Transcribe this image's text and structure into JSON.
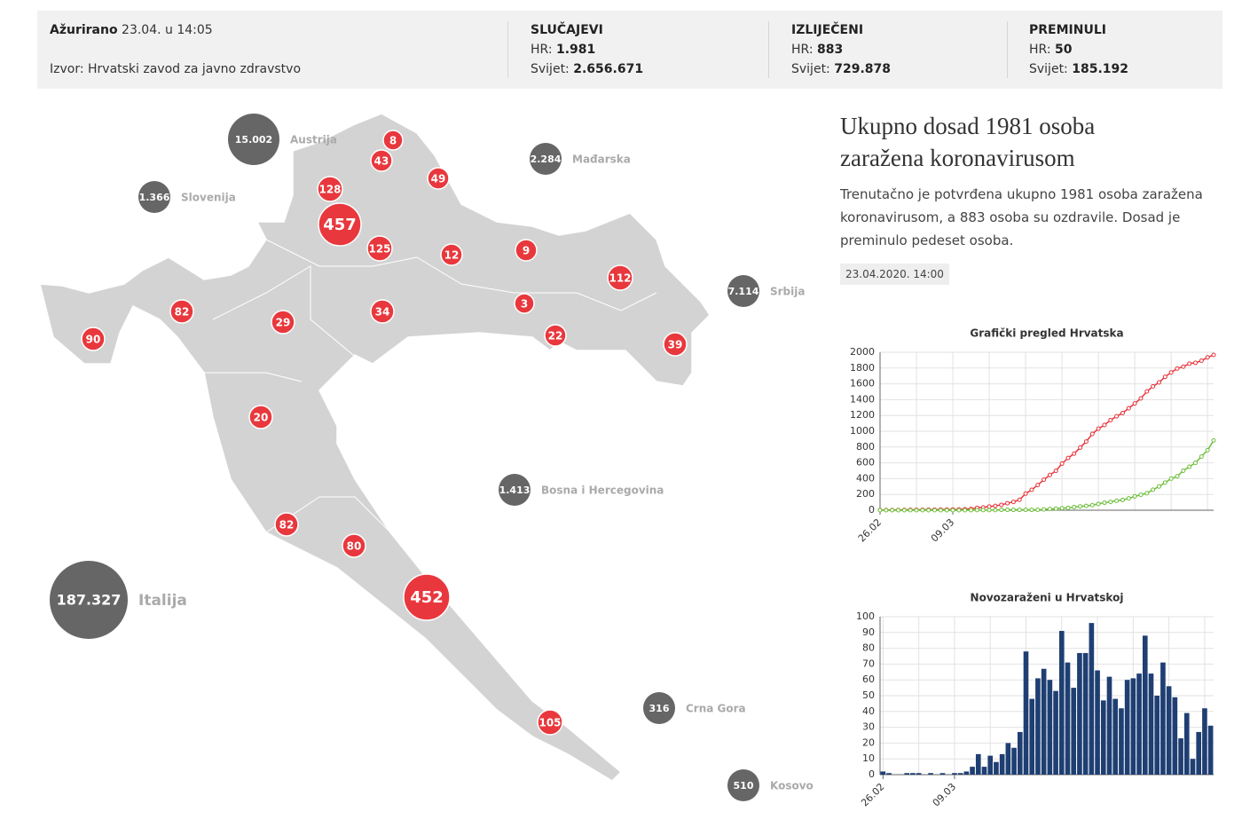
{
  "header": {
    "updated_label": "Ažurirano",
    "updated": "23.04. u 14:05",
    "source": "Izvor: Hrvatski zavod za javno zdravstvo",
    "stats": [
      {
        "title": "SLUČAJEVI",
        "hr_label": "HR:",
        "hr": "1.981",
        "world_label": "Svijet:",
        "world": "2.656.671"
      },
      {
        "title": "IZLIJEČENI",
        "hr_label": "HR:",
        "hr": "883",
        "world_label": "Svijet:",
        "world": "729.878"
      },
      {
        "title": "PREMINULI",
        "hr_label": "HR:",
        "hr": "50",
        "world_label": "Svijet:",
        "world": "185.192"
      }
    ]
  },
  "map": {
    "county_color": "#e8383d",
    "country_color": "#666666",
    "counties": [
      8,
      43,
      49,
      128,
      457,
      125,
      12,
      9,
      112,
      82,
      29,
      34,
      3,
      90,
      22,
      39,
      20,
      82,
      80,
      452,
      105
    ],
    "countries": [
      {
        "label": "15.002",
        "name": "Austrija"
      },
      {
        "label": "2.284",
        "name": "Mađarska"
      },
      {
        "label": "1.366",
        "name": "Slovenija"
      },
      {
        "label": "7.114",
        "name": "Srbija"
      },
      {
        "label": "1.413",
        "name": "Bosna i Hercegovina"
      },
      {
        "label": "187.327",
        "name": "Italija"
      },
      {
        "label": "316",
        "name": "Crna Gora"
      },
      {
        "label": "510",
        "name": "Kosovo"
      }
    ]
  },
  "article": {
    "title": "Ukupno dosad 1981 osoba zaražena koronavirusom",
    "body": "Trenutačno je potvrđena ukupno 1981 osoba zaražena koronavirusom, a 883 osoba su ozdravile. Dosad je preminulo pedeset osoba.",
    "date": "23.04.2020. 14:00"
  },
  "chart_data": [
    {
      "type": "line",
      "title": "Grafički pregled Hrvatska",
      "categories": [
        "26.02",
        null,
        null,
        null,
        null,
        null,
        null,
        null,
        null,
        null,
        null,
        null,
        "09.03",
        null,
        null,
        null,
        null,
        null,
        null,
        null,
        null,
        null,
        null,
        null,
        null,
        null,
        null,
        null,
        null,
        null,
        null,
        null,
        null,
        null,
        null,
        null,
        null,
        null,
        null,
        null,
        null,
        null,
        null,
        null,
        null,
        null,
        null,
        null,
        null,
        null,
        null,
        null,
        null,
        null,
        null,
        null
      ],
      "series": [
        {
          "color": "#e8333a",
          "values": [
            2,
            3,
            3,
            3,
            4,
            5,
            6,
            6,
            7,
            7,
            8,
            8,
            9,
            10,
            12,
            17,
            30,
            35,
            47,
            55,
            68,
            88,
            105,
            132,
            210,
            258,
            319,
            386,
            446,
            499,
            590,
            661,
            716,
            793,
            870,
            966,
            1032,
            1079,
            1141,
            1189,
            1231,
            1291,
            1352,
            1416,
            1504,
            1568,
            1618,
            1689,
            1745,
            1794,
            1817,
            1856,
            1866,
            1893,
            1935,
            1966
          ]
        },
        {
          "color": "#6dbf3a",
          "values": [
            0,
            0,
            0,
            0,
            0,
            0,
            0,
            0,
            0,
            0,
            0,
            0,
            0,
            0,
            0,
            0,
            1,
            1,
            1,
            2,
            5,
            5,
            5,
            5,
            5,
            5,
            6,
            10,
            15,
            20,
            25,
            30,
            40,
            48,
            55,
            65,
            80,
            95,
            105,
            120,
            130,
            150,
            175,
            195,
            215,
            260,
            300,
            350,
            400,
            430,
            500,
            550,
            600,
            680,
            760,
            883
          ]
        }
      ],
      "ylim": [
        0,
        2000
      ],
      "yticks": [
        0,
        200,
        400,
        600,
        800,
        1000,
        1200,
        1400,
        1600,
        1800,
        2000
      ],
      "grid": true
    },
    {
      "type": "bar",
      "title": "Novozaraženi u Hrvatskoj",
      "color": "#1f3f73",
      "categories": [
        "26.02",
        null,
        null,
        null,
        null,
        null,
        null,
        null,
        null,
        null,
        null,
        null,
        "09.03",
        null,
        null,
        null,
        null,
        null,
        null,
        null,
        null,
        null,
        null,
        null,
        null,
        null,
        null,
        null,
        null,
        null,
        null,
        null,
        null,
        null,
        null,
        null,
        null,
        null,
        null,
        null,
        null,
        null,
        null,
        null,
        null,
        null,
        null,
        null,
        null,
        null,
        null,
        null,
        null,
        null,
        null,
        null
      ],
      "values": [
        2,
        1,
        0,
        0,
        1,
        1,
        1,
        0,
        1,
        0,
        1,
        0,
        1,
        1,
        2,
        5,
        13,
        5,
        12,
        8,
        13,
        20,
        17,
        27,
        78,
        48,
        61,
        67,
        60,
        53,
        91,
        71,
        55,
        77,
        77,
        96,
        66,
        47,
        62,
        48,
        42,
        60,
        61,
        64,
        88,
        64,
        50,
        71,
        56,
        49,
        23,
        39,
        10,
        27,
        42,
        31
      ],
      "ylim": [
        0,
        100
      ],
      "yticks": [
        0,
        10,
        20,
        30,
        40,
        50,
        60,
        70,
        80,
        90,
        100
      ],
      "grid": true
    }
  ]
}
